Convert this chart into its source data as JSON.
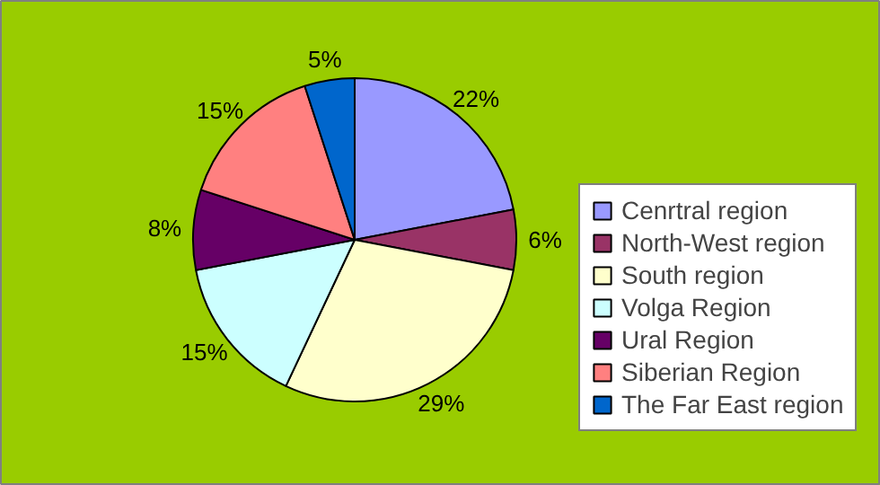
{
  "chart_data": {
    "type": "pie",
    "categories": [
      "Cenrtral region",
      "North-West region",
      "South region",
      "Volga Region",
      "Ural Region",
      "Siberian Region",
      "The Far East region"
    ],
    "values": [
      22,
      6,
      29,
      15,
      8,
      15,
      5
    ],
    "value_labels": [
      "22%",
      "6%",
      "29%",
      "15%",
      "8%",
      "15%",
      "5%"
    ],
    "colors": [
      "#9999ff",
      "#993366",
      "#ffffcc",
      "#ccffff",
      "#660066",
      "#ff8080",
      "#0066cc"
    ],
    "legend": "right"
  }
}
